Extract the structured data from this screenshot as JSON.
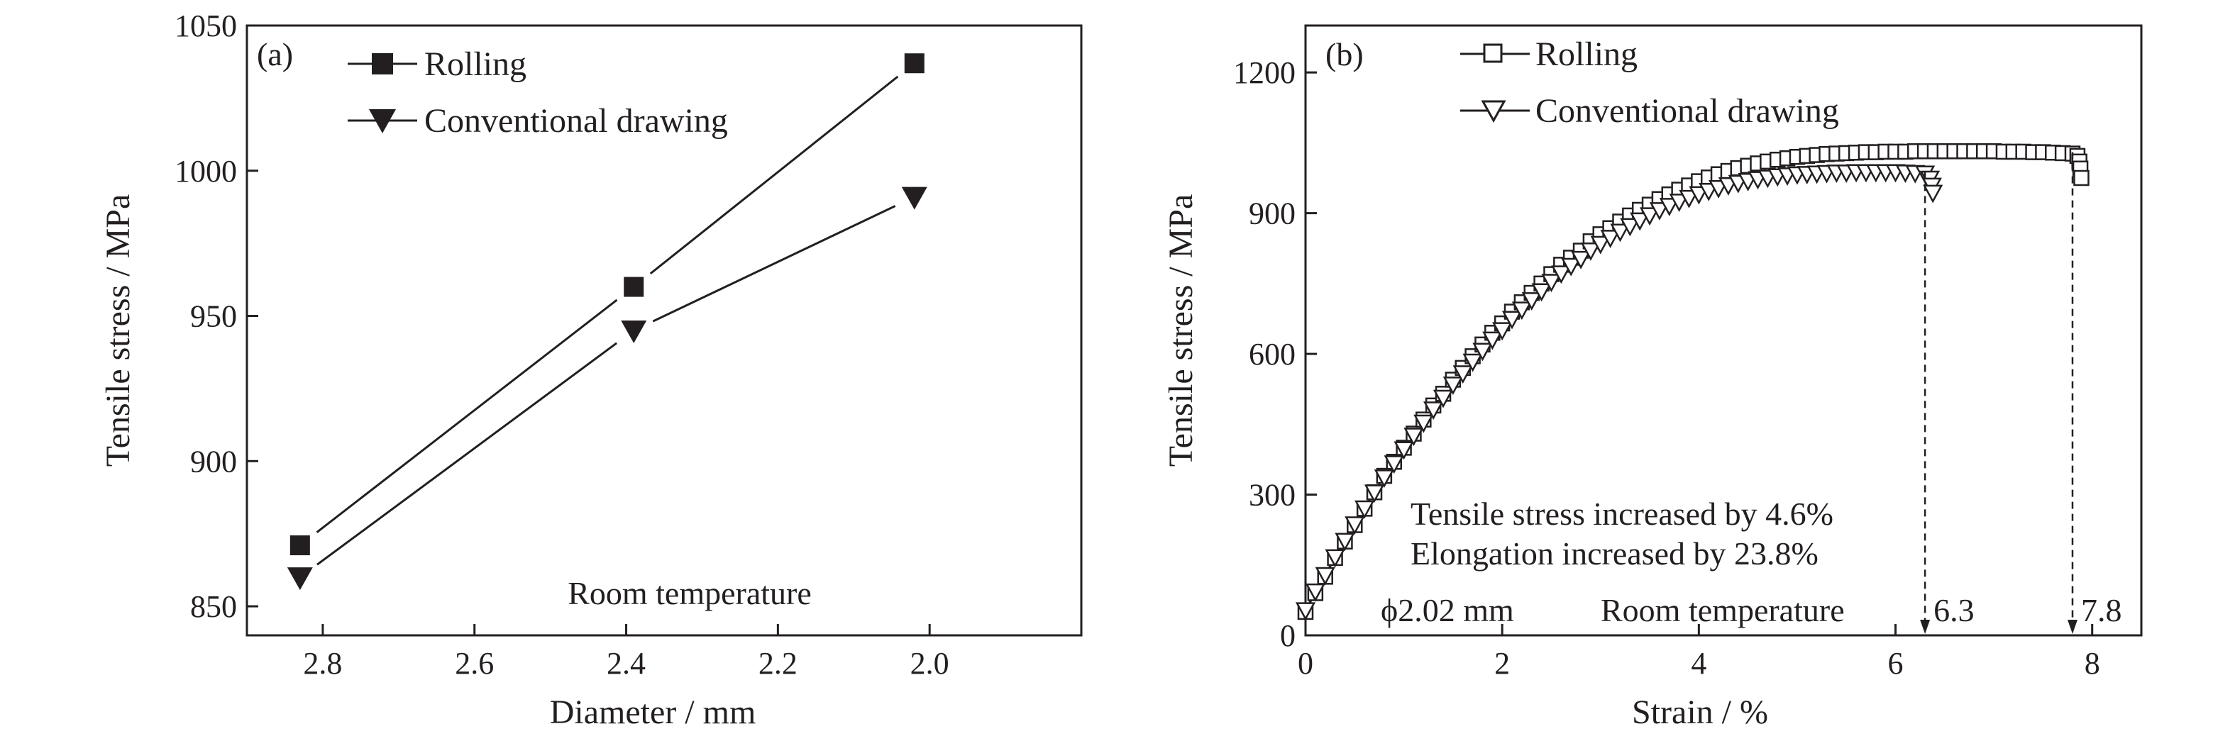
{
  "chart_data": [
    {
      "panel": "(a)",
      "type": "line",
      "xlabel": "Diameter / mm",
      "ylabel": "Tensile stress / MPa",
      "xlim": [
        2.9,
        1.8
      ],
      "ylim": [
        840,
        1050
      ],
      "x_reversed": true,
      "xticks": [
        2.8,
        2.6,
        2.4,
        2.2,
        2.0
      ],
      "xtick_labels": [
        "2.8",
        "2.6",
        "2.4",
        "2.2",
        "2.0"
      ],
      "yticks": [
        850,
        900,
        950,
        1000,
        1050
      ],
      "ytick_labels": [
        "850",
        "900",
        "950",
        "1000",
        "1050"
      ],
      "annotation": "Room temperature",
      "legend_position": "top-left",
      "x": [
        2.83,
        2.39,
        2.02
      ],
      "series": [
        {
          "name": "Rolling",
          "marker": "filled-square",
          "values": [
            871,
            960,
            1037
          ]
        },
        {
          "name": "Conventional drawing",
          "marker": "filled-triangle-down",
          "values": [
            860,
            945,
            991
          ]
        }
      ]
    },
    {
      "panel": "(b)",
      "type": "line",
      "xlabel": "Strain / %",
      "ylabel": "Tensile stress / MPa",
      "xlim": [
        0,
        8.5
      ],
      "ylim": [
        0,
        1300
      ],
      "xticks": [
        0,
        2,
        4,
        6,
        8
      ],
      "xtick_labels": [
        "0",
        "2",
        "4",
        "6",
        "8"
      ],
      "yticks": [
        0,
        300,
        600,
        900,
        1200
      ],
      "ytick_labels": [
        "0",
        "300",
        "600",
        "900",
        "1200"
      ],
      "legend_position": "top-left",
      "annotations": {
        "line1": "Tensile stress increased by 4.6%",
        "line2": "Elongation increased  by 23.8%",
        "diameter": "ϕ2.02 mm",
        "temperature": "Room temperature"
      },
      "fracture_markers": [
        {
          "x": 6.3,
          "label": "6.3"
        },
        {
          "x": 7.8,
          "label": "7.8"
        }
      ],
      "series": [
        {
          "name": "Rolling",
          "marker": "open-square",
          "x": [
            0,
            0.1,
            0.2,
            0.3,
            0.4,
            0.5,
            0.6,
            0.7,
            0.8,
            0.9,
            1.0,
            1.1,
            1.2,
            1.3,
            1.4,
            1.5,
            1.6,
            1.7,
            1.8,
            1.9,
            2.0,
            2.1,
            2.2,
            2.3,
            2.4,
            2.5,
            2.6,
            2.7,
            2.8,
            2.9,
            3.0,
            3.1,
            3.2,
            3.3,
            3.4,
            3.5,
            3.6,
            3.7,
            3.8,
            3.9,
            4.0,
            4.1,
            4.2,
            4.3,
            4.4,
            4.5,
            4.6,
            4.7,
            4.8,
            4.9,
            5.0,
            5.1,
            5.2,
            5.3,
            5.4,
            5.5,
            5.6,
            5.7,
            5.8,
            5.9,
            6.0,
            6.1,
            6.2,
            6.3,
            6.4,
            6.5,
            6.6,
            6.7,
            6.8,
            6.9,
            7.0,
            7.1,
            7.2,
            7.3,
            7.4,
            7.5,
            7.6,
            7.7,
            7.8,
            7.85,
            7.87,
            7.88,
            7.89
          ],
          "y": [
            50,
            90,
            125,
            165,
            200,
            235,
            270,
            305,
            340,
            370,
            400,
            430,
            460,
            490,
            515,
            545,
            570,
            595,
            620,
            645,
            665,
            690,
            710,
            730,
            750,
            770,
            790,
            805,
            820,
            840,
            855,
            868,
            882,
            895,
            907,
            918,
            930,
            940,
            950,
            959,
            968,
            976,
            983,
            990,
            996,
            1001,
            1006,
            1010,
            1014,
            1017,
            1020,
            1022,
            1024,
            1026,
            1027,
            1028,
            1029,
            1030,
            1030,
            1031,
            1031,
            1031,
            1032,
            1032,
            1032,
            1032,
            1032,
            1032,
            1032,
            1032,
            1032,
            1031,
            1031,
            1031,
            1030,
            1030,
            1029,
            1028,
            1027,
            1022,
            1010,
            995,
            975
          ]
        },
        {
          "name": "Conventional drawing",
          "marker": "open-triangle-down",
          "x": [
            0,
            0.1,
            0.2,
            0.3,
            0.4,
            0.5,
            0.6,
            0.7,
            0.8,
            0.9,
            1.0,
            1.1,
            1.2,
            1.3,
            1.4,
            1.5,
            1.6,
            1.7,
            1.8,
            1.9,
            2.0,
            2.1,
            2.2,
            2.3,
            2.4,
            2.5,
            2.6,
            2.7,
            2.8,
            2.9,
            3.0,
            3.1,
            3.2,
            3.3,
            3.4,
            3.5,
            3.6,
            3.7,
            3.8,
            3.9,
            4.0,
            4.1,
            4.2,
            4.3,
            4.4,
            4.5,
            4.6,
            4.7,
            4.8,
            4.9,
            5.0,
            5.1,
            5.2,
            5.3,
            5.4,
            5.5,
            5.6,
            5.7,
            5.8,
            5.9,
            6.0,
            6.1,
            6.2,
            6.3,
            6.35,
            6.37,
            6.38
          ],
          "y": [
            55,
            95,
            130,
            168,
            203,
            238,
            272,
            306,
            338,
            368,
            398,
            427,
            455,
            483,
            508,
            536,
            560,
            585,
            608,
            632,
            652,
            676,
            696,
            716,
            735,
            755,
            773,
            789,
            804,
            822,
            836,
            849,
            862,
            874,
            886,
            897,
            908,
            917,
            926,
            934,
            942,
            949,
            955,
            961,
            966,
            970,
            974,
            977,
            980,
            982,
            984,
            985,
            986,
            987,
            988,
            988,
            989,
            989,
            989,
            989,
            989,
            988,
            987,
            986,
            975,
            960,
            945
          ]
        }
      ]
    }
  ]
}
